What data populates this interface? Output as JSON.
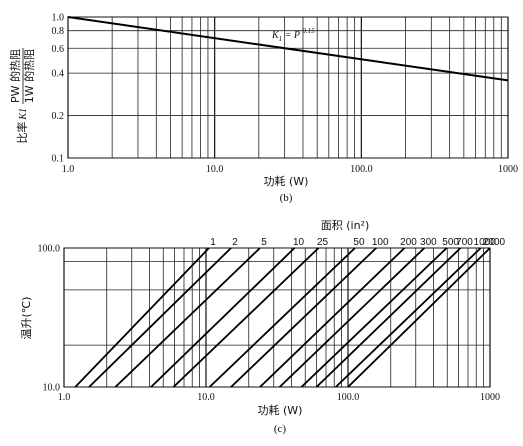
{
  "chart_data": [
    {
      "panel": "b",
      "type": "line",
      "caption": "(b)",
      "xlabel": "功耗 (W)",
      "ylabel_prefix": "比率",
      "ylabel_k": "K1",
      "ylabel_num": "PW 的热阻",
      "ylabel_den": "1W 的热阻",
      "x_scale": "log",
      "y_scale": "log",
      "xlim": [
        1,
        1000
      ],
      "ylim": [
        0.1,
        1.0
      ],
      "x_ticks": [
        1,
        10,
        100,
        1000
      ],
      "x_tick_labels": [
        "1.0",
        "10.0",
        "100.0",
        "1000"
      ],
      "y_ticks": [
        1.0,
        0.8,
        0.6,
        0.4,
        0.2,
        0.1
      ],
      "y_tick_labels": [
        "1.0",
        "0.8",
        "0.6",
        "0.4",
        "0.2",
        "0.1"
      ],
      "formula": "K1 = P -0.15",
      "formula_parts": {
        "k": "K",
        "sub": "1",
        "eq": " = P ",
        "exp": "0.15"
      },
      "grid": true,
      "series": [
        {
          "x": [
            1,
            1000
          ],
          "y": [
            1.0,
            0.355
          ]
        }
      ]
    },
    {
      "panel": "c",
      "type": "line",
      "caption": "(c)",
      "xlabel": "功耗 (W)",
      "ylabel": "温升(℃)",
      "top_axis_label": "面积 (in²)",
      "x_scale": "log",
      "y_scale": "log",
      "xlim": [
        1,
        1000
      ],
      "ylim": [
        10,
        100
      ],
      "x_ticks": [
        1,
        10,
        100,
        1000
      ],
      "x_tick_labels": [
        "1.0",
        "10.0",
        "100.0",
        "1000"
      ],
      "y_ticks": [
        100,
        10
      ],
      "y_tick_labels": [
        "100.0",
        "10.0"
      ],
      "grid": true,
      "area_labels": [
        "1",
        "2",
        "5",
        "10",
        "25",
        "50",
        "100",
        "200",
        "300",
        "500",
        "700",
        "1000",
        "2000"
      ],
      "series": [
        {
          "area": 1,
          "x": [
            1.2,
            10.5
          ],
          "y": [
            10,
            100
          ]
        },
        {
          "area": 2,
          "x": [
            1.5,
            15
          ],
          "y": [
            10,
            100
          ]
        },
        {
          "area": 5,
          "x": [
            2.3,
            24
          ],
          "y": [
            10,
            100
          ]
        },
        {
          "area": 10,
          "x": [
            4.1,
            42
          ],
          "y": [
            10,
            100
          ]
        },
        {
          "area": 25,
          "x": [
            5.9,
            62
          ],
          "y": [
            10,
            100
          ]
        },
        {
          "area": 50,
          "x": [
            10.6,
            112
          ],
          "y": [
            10,
            100
          ]
        },
        {
          "area": 100,
          "x": [
            15,
            158
          ],
          "y": [
            10,
            100
          ]
        },
        {
          "area": 200,
          "x": [
            24,
            250
          ],
          "y": [
            10,
            100
          ]
        },
        {
          "area": 300,
          "x": [
            33,
            345
          ],
          "y": [
            10,
            100
          ]
        },
        {
          "area": 500,
          "x": [
            47,
            495
          ],
          "y": [
            10,
            100
          ]
        },
        {
          "area": 700,
          "x": [
            60,
            620
          ],
          "y": [
            10,
            100
          ]
        },
        {
          "area": 1000,
          "x": [
            82,
            860
          ],
          "y": [
            10,
            100
          ]
        },
        {
          "area": 2000,
          "x": [
            100,
            1000
          ],
          "y": [
            10,
            100
          ]
        }
      ]
    }
  ]
}
